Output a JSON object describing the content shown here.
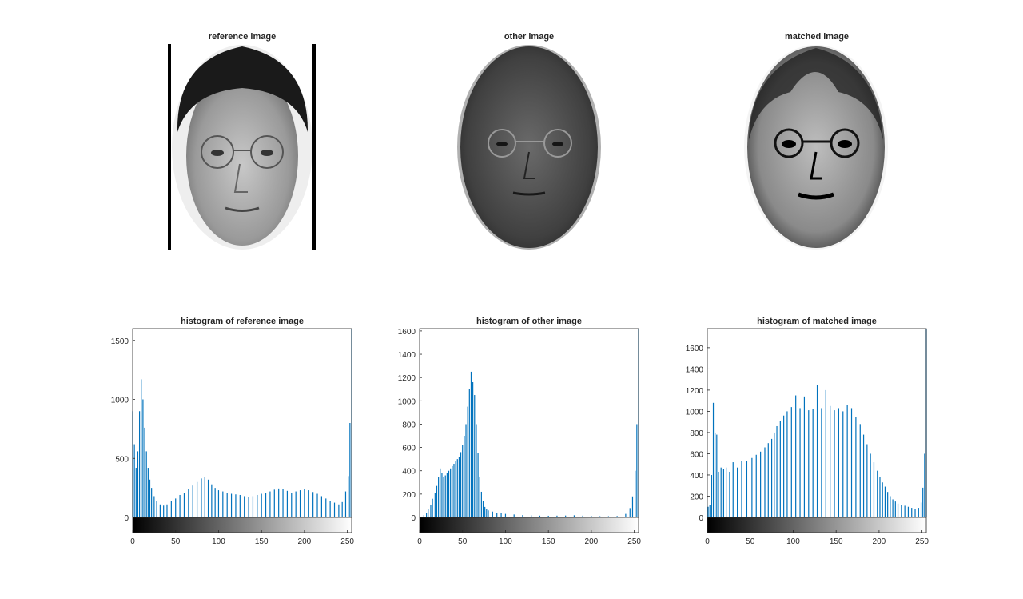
{
  "figure": {
    "images": [
      {
        "title": "reference image"
      },
      {
        "title": "other image"
      },
      {
        "title": "matched image"
      }
    ]
  },
  "chart_data": [
    {
      "type": "bar",
      "title": "histogram of reference image",
      "xlabel": "",
      "ylabel": "",
      "xlim": [
        0,
        255
      ],
      "ylim": [
        0,
        1600
      ],
      "xticks": [
        0,
        50,
        100,
        150,
        200,
        250
      ],
      "yticks": [
        0,
        500,
        1000,
        1500
      ],
      "grid": false,
      "colorbar": "grayscale 0-255",
      "color": "#0072BD",
      "bins": [
        [
          0,
          900
        ],
        [
          2,
          620
        ],
        [
          4,
          420
        ],
        [
          6,
          560
        ],
        [
          8,
          900
        ],
        [
          10,
          1170
        ],
        [
          12,
          1000
        ],
        [
          14,
          760
        ],
        [
          16,
          560
        ],
        [
          18,
          420
        ],
        [
          20,
          320
        ],
        [
          22,
          250
        ],
        [
          25,
          180
        ],
        [
          28,
          140
        ],
        [
          32,
          110
        ],
        [
          36,
          100
        ],
        [
          40,
          110
        ],
        [
          45,
          140
        ],
        [
          50,
          160
        ],
        [
          55,
          190
        ],
        [
          60,
          210
        ],
        [
          65,
          240
        ],
        [
          70,
          270
        ],
        [
          75,
          300
        ],
        [
          80,
          330
        ],
        [
          84,
          345
        ],
        [
          88,
          320
        ],
        [
          92,
          280
        ],
        [
          96,
          250
        ],
        [
          100,
          230
        ],
        [
          105,
          220
        ],
        [
          110,
          210
        ],
        [
          115,
          200
        ],
        [
          120,
          195
        ],
        [
          125,
          190
        ],
        [
          130,
          180
        ],
        [
          135,
          175
        ],
        [
          140,
          180
        ],
        [
          145,
          190
        ],
        [
          150,
          200
        ],
        [
          155,
          210
        ],
        [
          160,
          220
        ],
        [
          165,
          235
        ],
        [
          170,
          245
        ],
        [
          175,
          240
        ],
        [
          180,
          225
        ],
        [
          185,
          210
        ],
        [
          190,
          220
        ],
        [
          195,
          230
        ],
        [
          200,
          240
        ],
        [
          205,
          230
        ],
        [
          210,
          215
        ],
        [
          215,
          200
        ],
        [
          220,
          180
        ],
        [
          225,
          160
        ],
        [
          230,
          140
        ],
        [
          235,
          125
        ],
        [
          240,
          110
        ],
        [
          244,
          130
        ],
        [
          248,
          220
        ],
        [
          251,
          350
        ],
        [
          253,
          800
        ],
        [
          255,
          1600
        ]
      ]
    },
    {
      "type": "bar",
      "title": "histogram of other image",
      "xlabel": "",
      "ylabel": "",
      "xlim": [
        0,
        255
      ],
      "ylim": [
        0,
        1620
      ],
      "xticks": [
        0,
        50,
        100,
        150,
        200,
        250
      ],
      "yticks": [
        0,
        200,
        400,
        600,
        800,
        1000,
        1200,
        1400,
        1600
      ],
      "grid": false,
      "colorbar": "grayscale 0-255",
      "color": "#0072BD",
      "bins": [
        [
          5,
          20
        ],
        [
          8,
          40
        ],
        [
          10,
          70
        ],
        [
          13,
          110
        ],
        [
          15,
          160
        ],
        [
          18,
          210
        ],
        [
          20,
          270
        ],
        [
          22,
          350
        ],
        [
          24,
          420
        ],
        [
          26,
          380
        ],
        [
          28,
          350
        ],
        [
          30,
          360
        ],
        [
          32,
          380
        ],
        [
          34,
          400
        ],
        [
          36,
          420
        ],
        [
          38,
          440
        ],
        [
          40,
          460
        ],
        [
          42,
          480
        ],
        [
          44,
          500
        ],
        [
          46,
          520
        ],
        [
          48,
          560
        ],
        [
          50,
          620
        ],
        [
          52,
          700
        ],
        [
          54,
          800
        ],
        [
          56,
          950
        ],
        [
          58,
          1100
        ],
        [
          60,
          1250
        ],
        [
          62,
          1160
        ],
        [
          64,
          1050
        ],
        [
          66,
          800
        ],
        [
          68,
          550
        ],
        [
          70,
          350
        ],
        [
          72,
          220
        ],
        [
          74,
          140
        ],
        [
          76,
          90
        ],
        [
          78,
          70
        ],
        [
          80,
          60
        ],
        [
          85,
          50
        ],
        [
          90,
          40
        ],
        [
          95,
          35
        ],
        [
          100,
          30
        ],
        [
          110,
          25
        ],
        [
          120,
          20
        ],
        [
          130,
          18
        ],
        [
          140,
          15
        ],
        [
          150,
          14
        ],
        [
          160,
          15
        ],
        [
          170,
          16
        ],
        [
          180,
          18
        ],
        [
          190,
          15
        ],
        [
          200,
          12
        ],
        [
          210,
          10
        ],
        [
          220,
          10
        ],
        [
          230,
          12
        ],
        [
          240,
          30
        ],
        [
          245,
          80
        ],
        [
          248,
          180
        ],
        [
          251,
          400
        ],
        [
          253,
          800
        ],
        [
          255,
          1620
        ]
      ]
    },
    {
      "type": "bar",
      "title": "histogram of matched image",
      "xlabel": "",
      "ylabel": "",
      "xlim": [
        0,
        255
      ],
      "ylim": [
        0,
        1780
      ],
      "xticks": [
        0,
        50,
        100,
        150,
        200,
        250
      ],
      "yticks": [
        0,
        200,
        400,
        600,
        800,
        1000,
        1200,
        1400,
        1600
      ],
      "grid": false,
      "colorbar": "grayscale 0-255",
      "color": "#0072BD",
      "bins": [
        [
          1,
          100
        ],
        [
          3,
          120
        ],
        [
          5,
          400
        ],
        [
          7,
          1080
        ],
        [
          9,
          800
        ],
        [
          11,
          780
        ],
        [
          13,
          430
        ],
        [
          16,
          470
        ],
        [
          19,
          460
        ],
        [
          22,
          470
        ],
        [
          26,
          430
        ],
        [
          30,
          520
        ],
        [
          35,
          470
        ],
        [
          40,
          530
        ],
        [
          46,
          530
        ],
        [
          52,
          560
        ],
        [
          57,
          590
        ],
        [
          62,
          620
        ],
        [
          67,
          660
        ],
        [
          71,
          700
        ],
        [
          75,
          740
        ],
        [
          78,
          800
        ],
        [
          81,
          860
        ],
        [
          85,
          910
        ],
        [
          89,
          960
        ],
        [
          93,
          1000
        ],
        [
          98,
          1040
        ],
        [
          103,
          1150
        ],
        [
          108,
          1030
        ],
        [
          113,
          1140
        ],
        [
          118,
          1010
        ],
        [
          123,
          1020
        ],
        [
          128,
          1250
        ],
        [
          133,
          1030
        ],
        [
          138,
          1200
        ],
        [
          143,
          1050
        ],
        [
          148,
          1010
        ],
        [
          153,
          1030
        ],
        [
          158,
          1000
        ],
        [
          163,
          1060
        ],
        [
          168,
          1030
        ],
        [
          173,
          950
        ],
        [
          178,
          880
        ],
        [
          182,
          780
        ],
        [
          186,
          690
        ],
        [
          190,
          600
        ],
        [
          194,
          520
        ],
        [
          198,
          440
        ],
        [
          201,
          380
        ],
        [
          204,
          330
        ],
        [
          207,
          290
        ],
        [
          210,
          240
        ],
        [
          213,
          200
        ],
        [
          216,
          170
        ],
        [
          219,
          150
        ],
        [
          222,
          130
        ],
        [
          226,
          120
        ],
        [
          230,
          110
        ],
        [
          234,
          100
        ],
        [
          238,
          90
        ],
        [
          242,
          80
        ],
        [
          246,
          90
        ],
        [
          249,
          140
        ],
        [
          251,
          280
        ],
        [
          253,
          600
        ],
        [
          255,
          1780
        ]
      ]
    }
  ]
}
